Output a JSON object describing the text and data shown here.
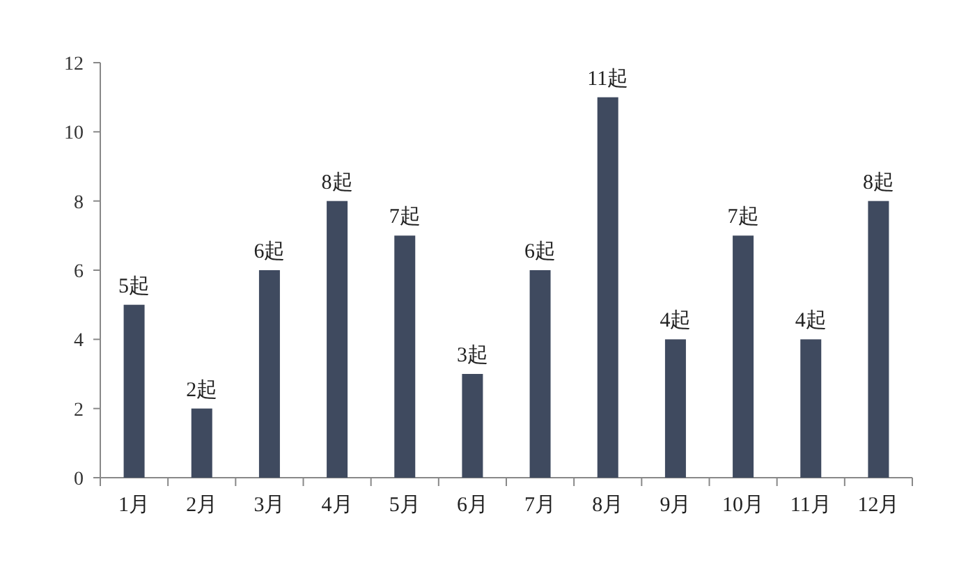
{
  "chart_data": {
    "type": "bar",
    "categories": [
      "1月",
      "2月",
      "3月",
      "4月",
      "5月",
      "6月",
      "7月",
      "8月",
      "9月",
      "10月",
      "11月",
      "12月"
    ],
    "values": [
      5,
      2,
      6,
      8,
      7,
      3,
      6,
      11,
      4,
      7,
      4,
      8
    ],
    "value_labels": [
      "5起",
      "2起",
      "6起",
      "8起",
      "7起",
      "3起",
      "6起",
      "11起",
      "4起",
      "7起",
      "4起",
      "8起"
    ],
    "color": "#3f4a5f",
    "ylim": [
      0,
      12
    ],
    "yticks": [
      0,
      2,
      4,
      6,
      8,
      10,
      12
    ],
    "grid": false
  }
}
